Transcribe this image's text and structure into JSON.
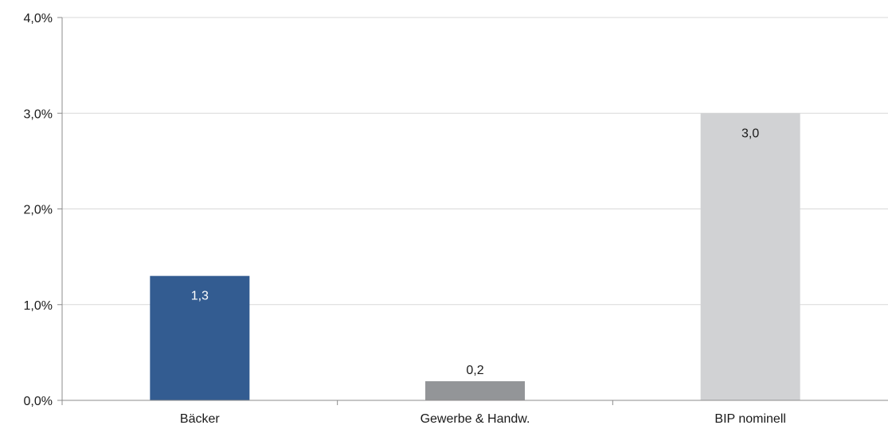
{
  "chart_data": {
    "type": "bar",
    "title": "",
    "xlabel": "",
    "ylabel": "",
    "categories": [
      "Bäcker",
      "Gewerbe & Handw.",
      "BIP nominell"
    ],
    "values": [
      1.3,
      0.2,
      3.0
    ],
    "data_labels": [
      "1,3",
      "0,2",
      "3,0"
    ],
    "label_position": [
      "inside",
      "outside",
      "inside"
    ],
    "colors": [
      "#335c91",
      "#939598",
      "#d1d2d4"
    ],
    "label_colors": [
      "#ffffff",
      "#1a1a1a",
      "#1a1a1a"
    ],
    "ylim": [
      0,
      4
    ],
    "yticks": [
      0,
      1,
      2,
      3,
      4
    ],
    "ytick_labels": [
      "0,0%",
      "1,0%",
      "2,0%",
      "3,0%",
      "4,0%"
    ],
    "grid": true,
    "gridline_color": "#d9d9d9",
    "axis_color": "#8c8c8c",
    "legend": "none"
  }
}
